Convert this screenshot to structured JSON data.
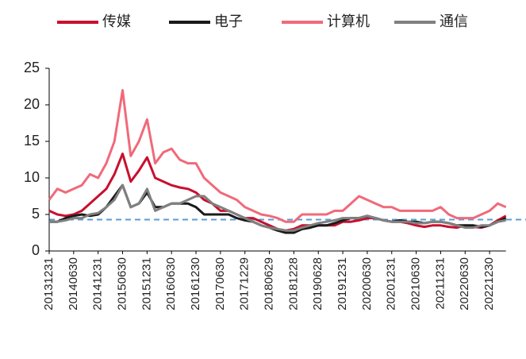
{
  "chart_data": {
    "type": "line",
    "categories": [
      "20131231",
      null,
      null,
      "20140630",
      null,
      null,
      "20141231",
      null,
      null,
      "20150630",
      null,
      null,
      "20151231",
      null,
      null,
      "20160630",
      null,
      null,
      "20161230",
      null,
      null,
      "20170630",
      null,
      null,
      "20171229",
      null,
      null,
      "20180629",
      null,
      null,
      "20181228",
      null,
      null,
      "20190628",
      null,
      null,
      "20191231",
      null,
      null,
      "20200630",
      null,
      null,
      "20201231",
      null,
      null,
      "20210630",
      null,
      null,
      "20211231",
      null,
      null,
      "20220630",
      null,
      null,
      "20221230",
      null,
      null
    ],
    "series": [
      {
        "name": "传媒",
        "color": "#c8102e",
        "values": [
          5.5,
          5,
          4.8,
          5,
          5.5,
          6.5,
          7.5,
          8.5,
          10.5,
          13.3,
          9.5,
          11,
          12.8,
          10,
          9.5,
          9,
          8.7,
          8.5,
          8,
          7,
          6.5,
          5.5,
          5.5,
          5,
          4.5,
          4.5,
          4,
          3.5,
          3,
          2.8,
          3,
          3.5,
          3.5,
          3.5,
          3.5,
          3.5,
          4,
          4,
          4.2,
          4.5,
          4.5,
          4.2,
          4,
          4,
          3.8,
          3.5,
          3.3,
          3.5,
          3.5,
          3.3,
          3.2,
          3.5,
          3.3,
          3.2,
          3.5,
          4.2,
          4.8
        ]
      },
      {
        "name": "电子",
        "color": "#1a1a1a",
        "values": [
          4,
          4,
          4.5,
          4.8,
          5,
          4.8,
          5,
          6,
          7.5,
          9,
          6,
          6.5,
          8,
          6,
          6,
          6.5,
          6.5,
          6.5,
          6,
          5,
          5,
          5,
          5,
          4.5,
          4.2,
          4,
          3.5,
          3.2,
          2.8,
          2.5,
          2.5,
          3,
          3.2,
          3.5,
          3.5,
          3.8,
          4.2,
          4.5,
          4.5,
          4.8,
          4.5,
          4.2,
          4,
          4.2,
          4,
          4,
          3.8,
          4,
          4,
          3.8,
          3.5,
          3.5,
          3.5,
          3.3,
          3.5,
          4,
          4.5
        ]
      },
      {
        "name": "计算机",
        "color": "#f06a7a",
        "values": [
          7,
          8.5,
          8,
          8.5,
          9,
          10.5,
          10,
          12,
          15,
          22,
          13,
          15,
          18,
          12,
          13.5,
          14,
          12.5,
          12,
          12,
          10,
          9,
          8,
          7.5,
          7,
          6,
          5.5,
          5,
          4.8,
          4.5,
          4,
          4,
          5,
          5,
          5,
          5,
          5.5,
          5.5,
          6.5,
          7.5,
          7,
          6.5,
          6,
          6,
          5.5,
          5.5,
          5.5,
          5.5,
          5.5,
          6,
          5,
          4.5,
          4.5,
          4.5,
          5,
          5.5,
          6.5,
          6
        ]
      },
      {
        "name": "通信",
        "color": "#808080",
        "values": [
          4,
          4,
          4.2,
          4.5,
          4.5,
          5,
          5.2,
          6,
          7,
          9,
          6,
          6.5,
          8.5,
          5.5,
          6,
          6.5,
          6.5,
          7,
          7.5,
          7.5,
          6.5,
          6,
          5.5,
          5,
          4.5,
          4,
          3.5,
          3.2,
          3,
          2.8,
          2.8,
          3.2,
          3.5,
          3.8,
          4,
          4.2,
          4.5,
          4.5,
          4.5,
          4.8,
          4.5,
          4.2,
          4,
          4,
          4,
          3.8,
          3.8,
          4,
          4,
          3.8,
          3.5,
          3.2,
          3.2,
          3.5,
          3.5,
          4,
          4.2
        ]
      }
    ],
    "reference_line": {
      "value": 4.3,
      "color": "#5b9bd5"
    },
    "ylim": [
      0,
      25
    ],
    "yticks": [
      0,
      5,
      10,
      15,
      20,
      25
    ]
  }
}
